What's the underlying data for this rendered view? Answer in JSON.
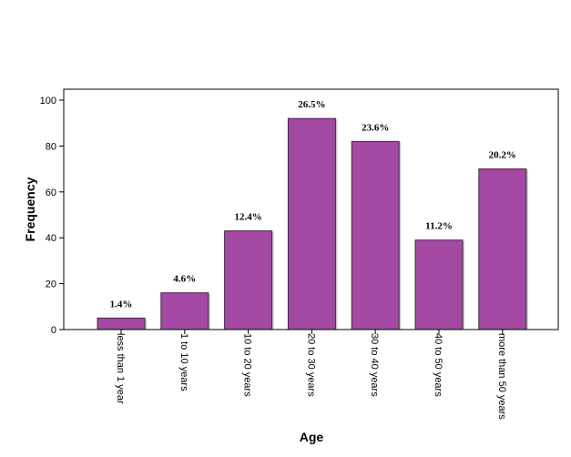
{
  "chart_data": {
    "type": "bar",
    "categories": [
      "less than 1 year",
      "1 to 10 years",
      "10 to 20 years",
      "20 to 30 years",
      "30 to 40 years",
      "40 to 50 years",
      "more than 50 years"
    ],
    "values": [
      5,
      16,
      43,
      92,
      82,
      39,
      70
    ],
    "data_labels": [
      "1.4%",
      "4.6%",
      "12.4%",
      "26.5%",
      "23.6%",
      "11.2%",
      "20.2%"
    ],
    "xlabel": "Age",
    "ylabel": "Frequency",
    "ylim": [
      0,
      100
    ],
    "yticks": [
      0,
      20,
      40,
      60,
      80,
      100
    ],
    "grid": false,
    "bar_color": "#a349a4"
  }
}
